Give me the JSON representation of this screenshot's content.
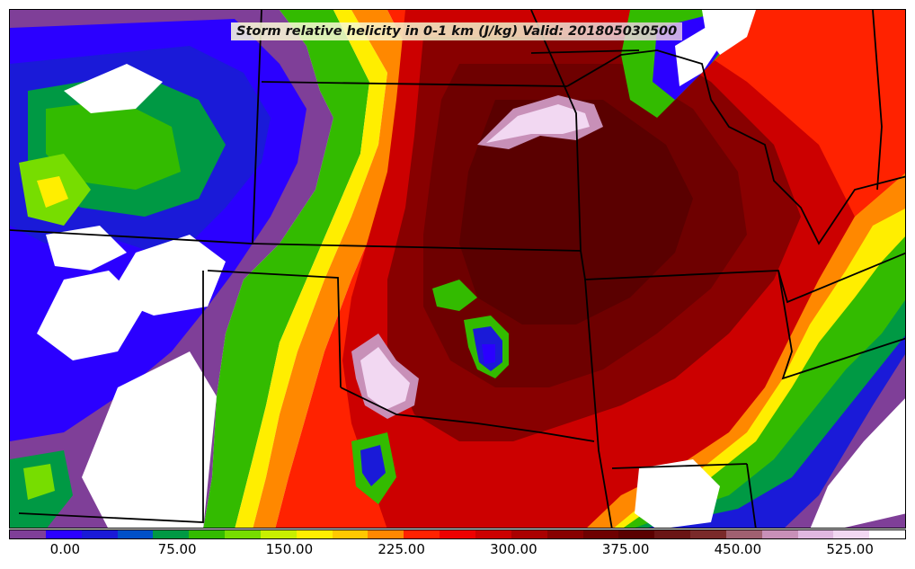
{
  "title": "Storm relative helicity in 0-1 km (J/kg) Valid: 201805030500",
  "colorbar": {
    "colors": [
      "#7f3f98",
      "#2b00ff",
      "#1a1ad8",
      "#0050c8",
      "#009944",
      "#33bb00",
      "#77dd00",
      "#c8f000",
      "#ffee00",
      "#ffc800",
      "#ff8800",
      "#ff2200",
      "#ee0000",
      "#cc0000",
      "#aa0000",
      "#880000",
      "#6e0000",
      "#5a0000",
      "#6a1515",
      "#7a2a2a",
      "#a06070",
      "#c890b8",
      "#e0b8e0",
      "#f2d8f2",
      "#ffffff"
    ],
    "ticks": [
      "0.00",
      "75.00",
      "150.00",
      "225.00",
      "300.00",
      "375.00",
      "450.00",
      "525.00"
    ],
    "tick_values": [
      0,
      75,
      150,
      225,
      300,
      375,
      450,
      525
    ],
    "range": [
      -37.5,
      562.5
    ]
  }
}
